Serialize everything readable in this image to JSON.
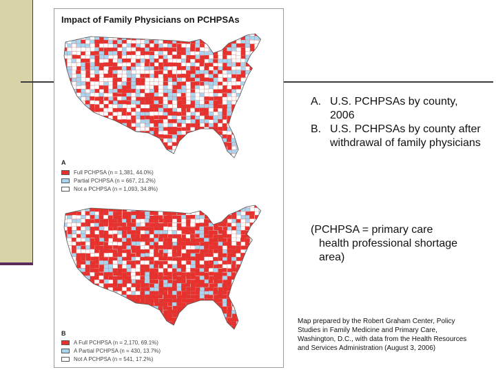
{
  "figure": {
    "title": "Impact of Family Physicians on PCHPSAs",
    "panel_a": {
      "label": "A",
      "legend": [
        {
          "text": "Full PCHPSA (n = 1,381, 44.0%)",
          "color": "#e8312d"
        },
        {
          "text": "Partial PCHPSA (n = 667, 21.2%)",
          "color": "#a9d6ee"
        },
        {
          "text": "Not a PCHPSA (n = 1,093, 34.8%)",
          "color": "#ffffff"
        }
      ],
      "counties": [
        {
          "category": "Full PCHPSA",
          "count": 1381,
          "percent": 44.0
        },
        {
          "category": "Partial PCHPSA",
          "count": 667,
          "percent": 21.2
        },
        {
          "category": "Not a PCHPSA",
          "count": 1093,
          "percent": 34.8
        }
      ]
    },
    "panel_b": {
      "label": "B",
      "legend": [
        {
          "text": "A Full PCHPSA (n = 2,170, 69.1%)",
          "color": "#e8312d"
        },
        {
          "text": "A Partial PCHPSA (n = 430, 13.7%)",
          "color": "#a9d6ee"
        },
        {
          "text": "Not A PCHPSA (n = 541, 17.2%)",
          "color": "#ffffff"
        }
      ],
      "counties": [
        {
          "category": "A Full PCHPSA",
          "count": 2170,
          "percent": 69.1
        },
        {
          "category": "A Partial PCHPSA",
          "count": 430,
          "percent": 13.7
        },
        {
          "category": "Not A PCHPSA",
          "count": 541,
          "percent": 17.2
        }
      ]
    }
  },
  "captions": {
    "item_a_marker": "A.",
    "item_a_text": "U.S. PCHPSAs by county, 2006",
    "item_b_marker": "B.",
    "item_b_text": "U.S. PCHPSAs by county after withdrawal of family physicians",
    "definition_line1": "(PCHPSA = primary care",
    "definition_line2": "health professional shortage area)",
    "credit": "Map prepared by the Robert Graham Center, Policy Studies in Family Medicine and Primary Care, Washington, D.C., with data from the Health Resources and Services Administration (August 3, 2006)"
  },
  "colors": {
    "full": "#e8312d",
    "partial": "#a9d6ee",
    "none": "#ffffff",
    "accent_band": "#d9d3a8",
    "accent_line": "#5b2a5b"
  }
}
